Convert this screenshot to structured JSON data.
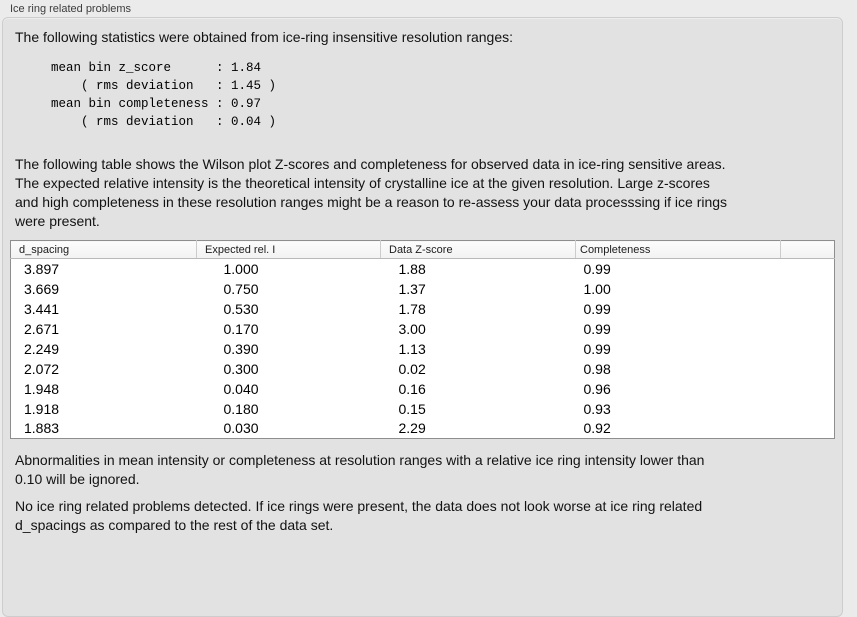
{
  "section": {
    "title": "Ice ring related problems"
  },
  "intro": "The following statistics were obtained from ice-ring insensitive resolution ranges:",
  "stats_block": "mean bin z_score      : 1.84\n    ( rms deviation   : 1.45 )\nmean bin completeness : 0.97\n    ( rms deviation   : 0.04 )",
  "stats": {
    "mean_bin_z_score": "1.84",
    "z_score_rms_deviation": "1.45",
    "mean_bin_completeness": "0.97",
    "completeness_rms_deviation": "0.04"
  },
  "table_description": "The following table shows the Wilson plot Z-scores and completeness for observed data in ice-ring sensitive areas.\nThe expected relative intensity is the theoretical intensity of crystalline ice at the given resolution. Large z-scores\nand high completeness in these resolution ranges might be a reason to re-assess your data processsing if ice rings\nwere present.",
  "table": {
    "columns": [
      "d_spacing",
      "Expected rel. I",
      "Data Z-score",
      "Completeness",
      ""
    ],
    "rows": [
      [
        "3.897",
        "1.000",
        "1.88",
        "0.99"
      ],
      [
        "3.669",
        "0.750",
        "1.37",
        "1.00"
      ],
      [
        "3.441",
        "0.530",
        "1.78",
        "0.99"
      ],
      [
        "2.671",
        "0.170",
        "3.00",
        "0.99"
      ],
      [
        "2.249",
        "0.390",
        "1.13",
        "0.99"
      ],
      [
        "2.072",
        "0.300",
        "0.02",
        "0.98"
      ],
      [
        "1.948",
        "0.040",
        "0.16",
        "0.96"
      ],
      [
        "1.918",
        "0.180",
        "0.15",
        "0.93"
      ],
      [
        "1.883",
        "0.030",
        "2.29",
        "0.92"
      ]
    ]
  },
  "ignore_note": "Abnormalities in mean intensity or completeness at resolution ranges with a relative ice ring intensity lower than\n0.10 will be ignored.",
  "conclusion": "No ice ring related problems detected. If ice rings were present, the data does not look worse at ice ring related\nd_spacings as compared to the rest of the data set.",
  "colors": {
    "page_background": "#ebebeb",
    "panel_background": "#e2e2e2",
    "panel_border": "#cdcdcd",
    "table_border": "#8e8e8e",
    "table_header_background": "#f6f6f6",
    "text": "#141414"
  }
}
